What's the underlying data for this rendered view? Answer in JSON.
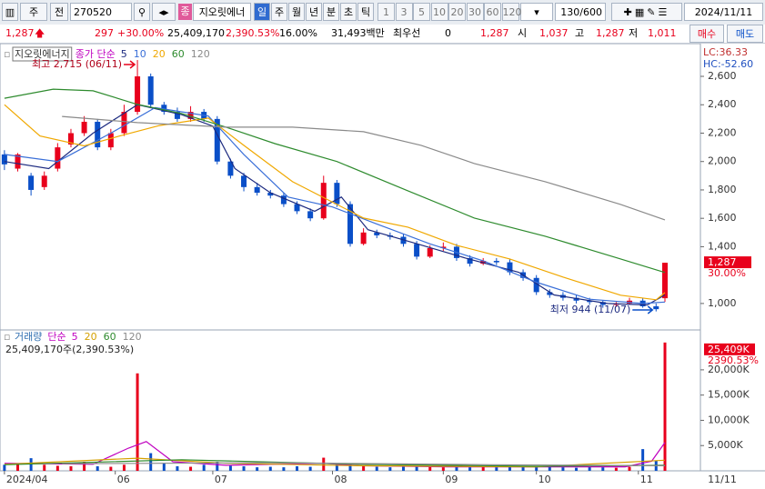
{
  "toolbar": {
    "market": "주",
    "type": "전",
    "code": "270520",
    "badge": "종",
    "name": "지오릿에너",
    "periods": [
      "일",
      "주",
      "월",
      "년",
      "분",
      "초",
      "틱"
    ],
    "intervals": [
      "1",
      "3",
      "5",
      "10",
      "20",
      "30",
      "60",
      "120"
    ],
    "count": "130/600",
    "date": "2024/11/11"
  },
  "quote": {
    "price": "1,287",
    "change": "297",
    "change_pct": "+30.00%",
    "volume": "25,409,170",
    "volume_pct": "2,390.53%",
    "turnover": "16.00%",
    "amount": "31,493백만",
    "best_label": "최우선",
    "best": "0",
    "ask": "1,287",
    "open_label": "시",
    "open": "1,037",
    "high_label": "고",
    "high": "1,287",
    "low_label": "저",
    "low": "1,011",
    "buy": "매수",
    "sell": "매도"
  },
  "chart_data": [
    {
      "type": "candlestick",
      "title": "지오릿에너지",
      "ma_label": "종가 단순",
      "x": [
        0,
        3,
        6,
        9,
        12,
        15,
        18,
        21,
        24,
        27,
        30,
        33,
        36,
        39,
        42,
        45,
        48,
        51,
        54,
        57,
        60,
        63,
        66,
        69,
        72,
        75,
        78,
        81,
        84,
        87,
        90,
        93,
        96,
        99,
        102,
        105,
        108,
        111,
        114,
        117,
        120,
        123,
        126,
        129,
        132,
        135,
        138,
        141,
        144,
        147,
        149
      ],
      "open": [
        2050,
        1950,
        1900,
        1820,
        1950,
        2120,
        2200,
        2280,
        2100,
        2200,
        2350,
        2600,
        2400,
        2350,
        2300,
        2350,
        2300,
        2000,
        1900,
        1820,
        1780,
        1760,
        1700,
        1650,
        1600,
        1850,
        1700,
        1420,
        1500,
        1480,
        1470,
        1420,
        1330,
        1390,
        1400,
        1320,
        1280,
        1300,
        1290,
        1220,
        1180,
        1080,
        1060,
        1040,
        1020,
        1010,
        990,
        1000,
        1020,
        980,
        1037
      ],
      "high": [
        2080,
        2060,
        1920,
        1930,
        2130,
        2230,
        2320,
        2300,
        2230,
        2400,
        2715,
        2620,
        2420,
        2380,
        2390,
        2370,
        2320,
        2020,
        1920,
        1850,
        1800,
        1780,
        1720,
        1670,
        1900,
        1870,
        1720,
        1530,
        1520,
        1500,
        1490,
        1440,
        1410,
        1430,
        1420,
        1340,
        1320,
        1320,
        1310,
        1240,
        1200,
        1100,
        1080,
        1060,
        1040,
        1020,
        1010,
        1040,
        1040,
        1000,
        1287
      ],
      "low": [
        1940,
        1930,
        1760,
        1800,
        1930,
        2100,
        2180,
        2080,
        2080,
        2180,
        2330,
        2380,
        2330,
        2280,
        2280,
        2280,
        1980,
        1880,
        1790,
        1760,
        1740,
        1680,
        1630,
        1580,
        1590,
        1680,
        1400,
        1410,
        1460,
        1450,
        1400,
        1310,
        1320,
        1370,
        1300,
        1260,
        1270,
        1270,
        1200,
        1160,
        1060,
        1040,
        1020,
        1000,
        990,
        970,
        975,
        990,
        970,
        944,
        1011
      ],
      "close": [
        1980,
        2050,
        1800,
        1900,
        2100,
        2200,
        2280,
        2100,
        2200,
        2350,
        2600,
        2400,
        2350,
        2300,
        2350,
        2300,
        2000,
        1900,
        1820,
        1780,
        1760,
        1700,
        1650,
        1600,
        1850,
        1700,
        1420,
        1500,
        1480,
        1470,
        1420,
        1330,
        1390,
        1400,
        1320,
        1280,
        1300,
        1290,
        1220,
        1180,
        1080,
        1060,
        1040,
        1020,
        1010,
        990,
        1000,
        1020,
        980,
        960,
        1287
      ],
      "up_color": "#e8001c",
      "down_color": "#0a4fc8",
      "series": [
        {
          "name": "5",
          "color": "#1c2a80",
          "x": [
            0,
            10,
            20,
            30,
            40,
            47,
            52,
            60,
            70,
            76,
            82,
            92,
            104,
            116,
            124,
            136,
            145,
            149
          ],
          "values": [
            2000,
            1950,
            2200,
            2400,
            2330,
            2250,
            1950,
            1780,
            1650,
            1750,
            1520,
            1430,
            1320,
            1220,
            1060,
            1000,
            990,
            1060
          ]
        },
        {
          "name": "10",
          "color": "#3a6fd8",
          "x": [
            0,
            12,
            24,
            34,
            46,
            54,
            64,
            74,
            84,
            96,
            108,
            120,
            132,
            144,
            149
          ],
          "values": [
            2050,
            2000,
            2200,
            2380,
            2320,
            2050,
            1750,
            1680,
            1560,
            1420,
            1300,
            1150,
            1030,
            1000,
            1010
          ]
        },
        {
          "name": "20",
          "color": "#f0a800",
          "x": [
            0,
            8,
            18,
            26,
            35,
            46,
            54,
            65,
            73,
            81,
            91,
            102,
            114,
            126,
            139,
            147,
            149
          ],
          "values": [
            2400,
            2180,
            2110,
            2180,
            2254,
            2306,
            2114,
            1858,
            1730,
            1602,
            1538,
            1410,
            1314,
            1186,
            1058,
            1026,
            1077
          ]
        },
        {
          "name": "60",
          "color": "#2e8b2e",
          "x": [
            0,
            11,
            20,
            30,
            40,
            50,
            61,
            75,
            91,
            106,
            122,
            139,
            149
          ],
          "values": [
            2446,
            2510,
            2498,
            2402,
            2338,
            2242,
            2126,
            2000,
            1794,
            1602,
            1474,
            1314,
            1218
          ]
        },
        {
          "name": "120",
          "color": "#8a8a8a",
          "x": [
            13,
            30,
            50,
            65,
            81,
            94,
            106,
            122,
            139,
            149
          ],
          "values": [
            2318,
            2274,
            2242,
            2242,
            2210,
            2114,
            1986,
            1858,
            1698,
            1589
          ]
        }
      ],
      "xlim": [
        -1,
        157
      ],
      "ylim": [
        820,
        2805
      ],
      "yticks": [
        {
          "value": 1000,
          "label": "1,000"
        },
        {
          "value": 1400,
          "label": "1,400"
        },
        {
          "value": 1600,
          "label": "1,600"
        },
        {
          "value": 1800,
          "label": "1,800"
        },
        {
          "value": 2000,
          "label": "2,000"
        },
        {
          "value": 2200,
          "label": "2,200"
        },
        {
          "value": 2400,
          "label": "2,400"
        },
        {
          "value": 2600,
          "label": "2,600"
        }
      ],
      "annotations": [
        {
          "text": "최고 2,715 (06/11)"
        },
        {
          "text": "최저 944 (11/07)"
        }
      ],
      "right_labels": {
        "lc": "LC:36.33",
        "hc": "HC:-52.60",
        "last": "1,287",
        "last_pct": "30.00%"
      }
    },
    {
      "type": "bar",
      "title": "거래량",
      "ma_label": "단순",
      "summary": "25,409,170주(2,390.53%)",
      "x": [
        0,
        3,
        6,
        9,
        12,
        15,
        18,
        21,
        24,
        27,
        30,
        33,
        36,
        39,
        42,
        45,
        48,
        51,
        54,
        57,
        60,
        63,
        66,
        69,
        72,
        75,
        78,
        81,
        84,
        87,
        90,
        93,
        96,
        99,
        102,
        105,
        108,
        111,
        114,
        117,
        120,
        123,
        126,
        129,
        132,
        135,
        138,
        141,
        144,
        147,
        149
      ],
      "values": [
        1200,
        1500,
        2500,
        1200,
        1000,
        900,
        1800,
        900,
        800,
        1200,
        19300,
        3500,
        1500,
        900,
        800,
        1200,
        1800,
        1000,
        900,
        700,
        800,
        700,
        900,
        800,
        2600,
        1500,
        1500,
        900,
        800,
        700,
        900,
        900,
        800,
        700,
        900,
        700,
        800,
        700,
        800,
        900,
        900,
        800,
        700,
        600,
        800,
        700,
        600,
        800,
        4300,
        2000,
        25409
      ],
      "series": [
        {
          "name": "5",
          "color": "#c000c0",
          "x": [
            0,
            20,
            28,
            32,
            38,
            50,
            72,
            80,
            100,
            140,
            146,
            149
          ],
          "values": [
            1500,
            1300,
            4500,
            5800,
            1800,
            1100,
            1500,
            1000,
            800,
            800,
            1900,
            5600
          ]
        },
        {
          "name": "20",
          "color": "#d4a000",
          "x": [
            0,
            30,
            50,
            80,
            120,
            149
          ],
          "values": [
            1300,
            2500,
            1500,
            1000,
            800,
            2100
          ]
        },
        {
          "name": "60",
          "color": "#2e8b2e",
          "x": [
            0,
            40,
            80,
            120,
            149
          ],
          "values": [
            1200,
            2200,
            1300,
            900,
            1100
          ]
        },
        {
          "name": "120",
          "color": "#8a8a8a",
          "x": [
            13,
            60,
            110,
            149
          ],
          "values": [
            1400,
            1600,
            1200,
            1000
          ]
        }
      ],
      "xlim": [
        -1,
        157
      ],
      "ylim": [
        0,
        27000
      ],
      "yticks": [
        {
          "value": 5000,
          "label": "5,000K"
        },
        {
          "value": 10000,
          "label": "10,000K"
        },
        {
          "value": 15000,
          "label": "15,000K"
        },
        {
          "value": 20000,
          "label": "20,000K"
        }
      ],
      "xticks": [
        {
          "value": 0,
          "label": "2024/04"
        },
        {
          "value": 25,
          "label": "06"
        },
        {
          "value": 47,
          "label": "07"
        },
        {
          "value": 74,
          "label": "08"
        },
        {
          "value": 99,
          "label": "09"
        },
        {
          "value": 120,
          "label": "10"
        },
        {
          "value": 143,
          "label": "11"
        }
      ],
      "x_end_label": "11/11",
      "right_labels": {
        "last": "25,409K",
        "last_pct": "2390.53%"
      }
    }
  ]
}
